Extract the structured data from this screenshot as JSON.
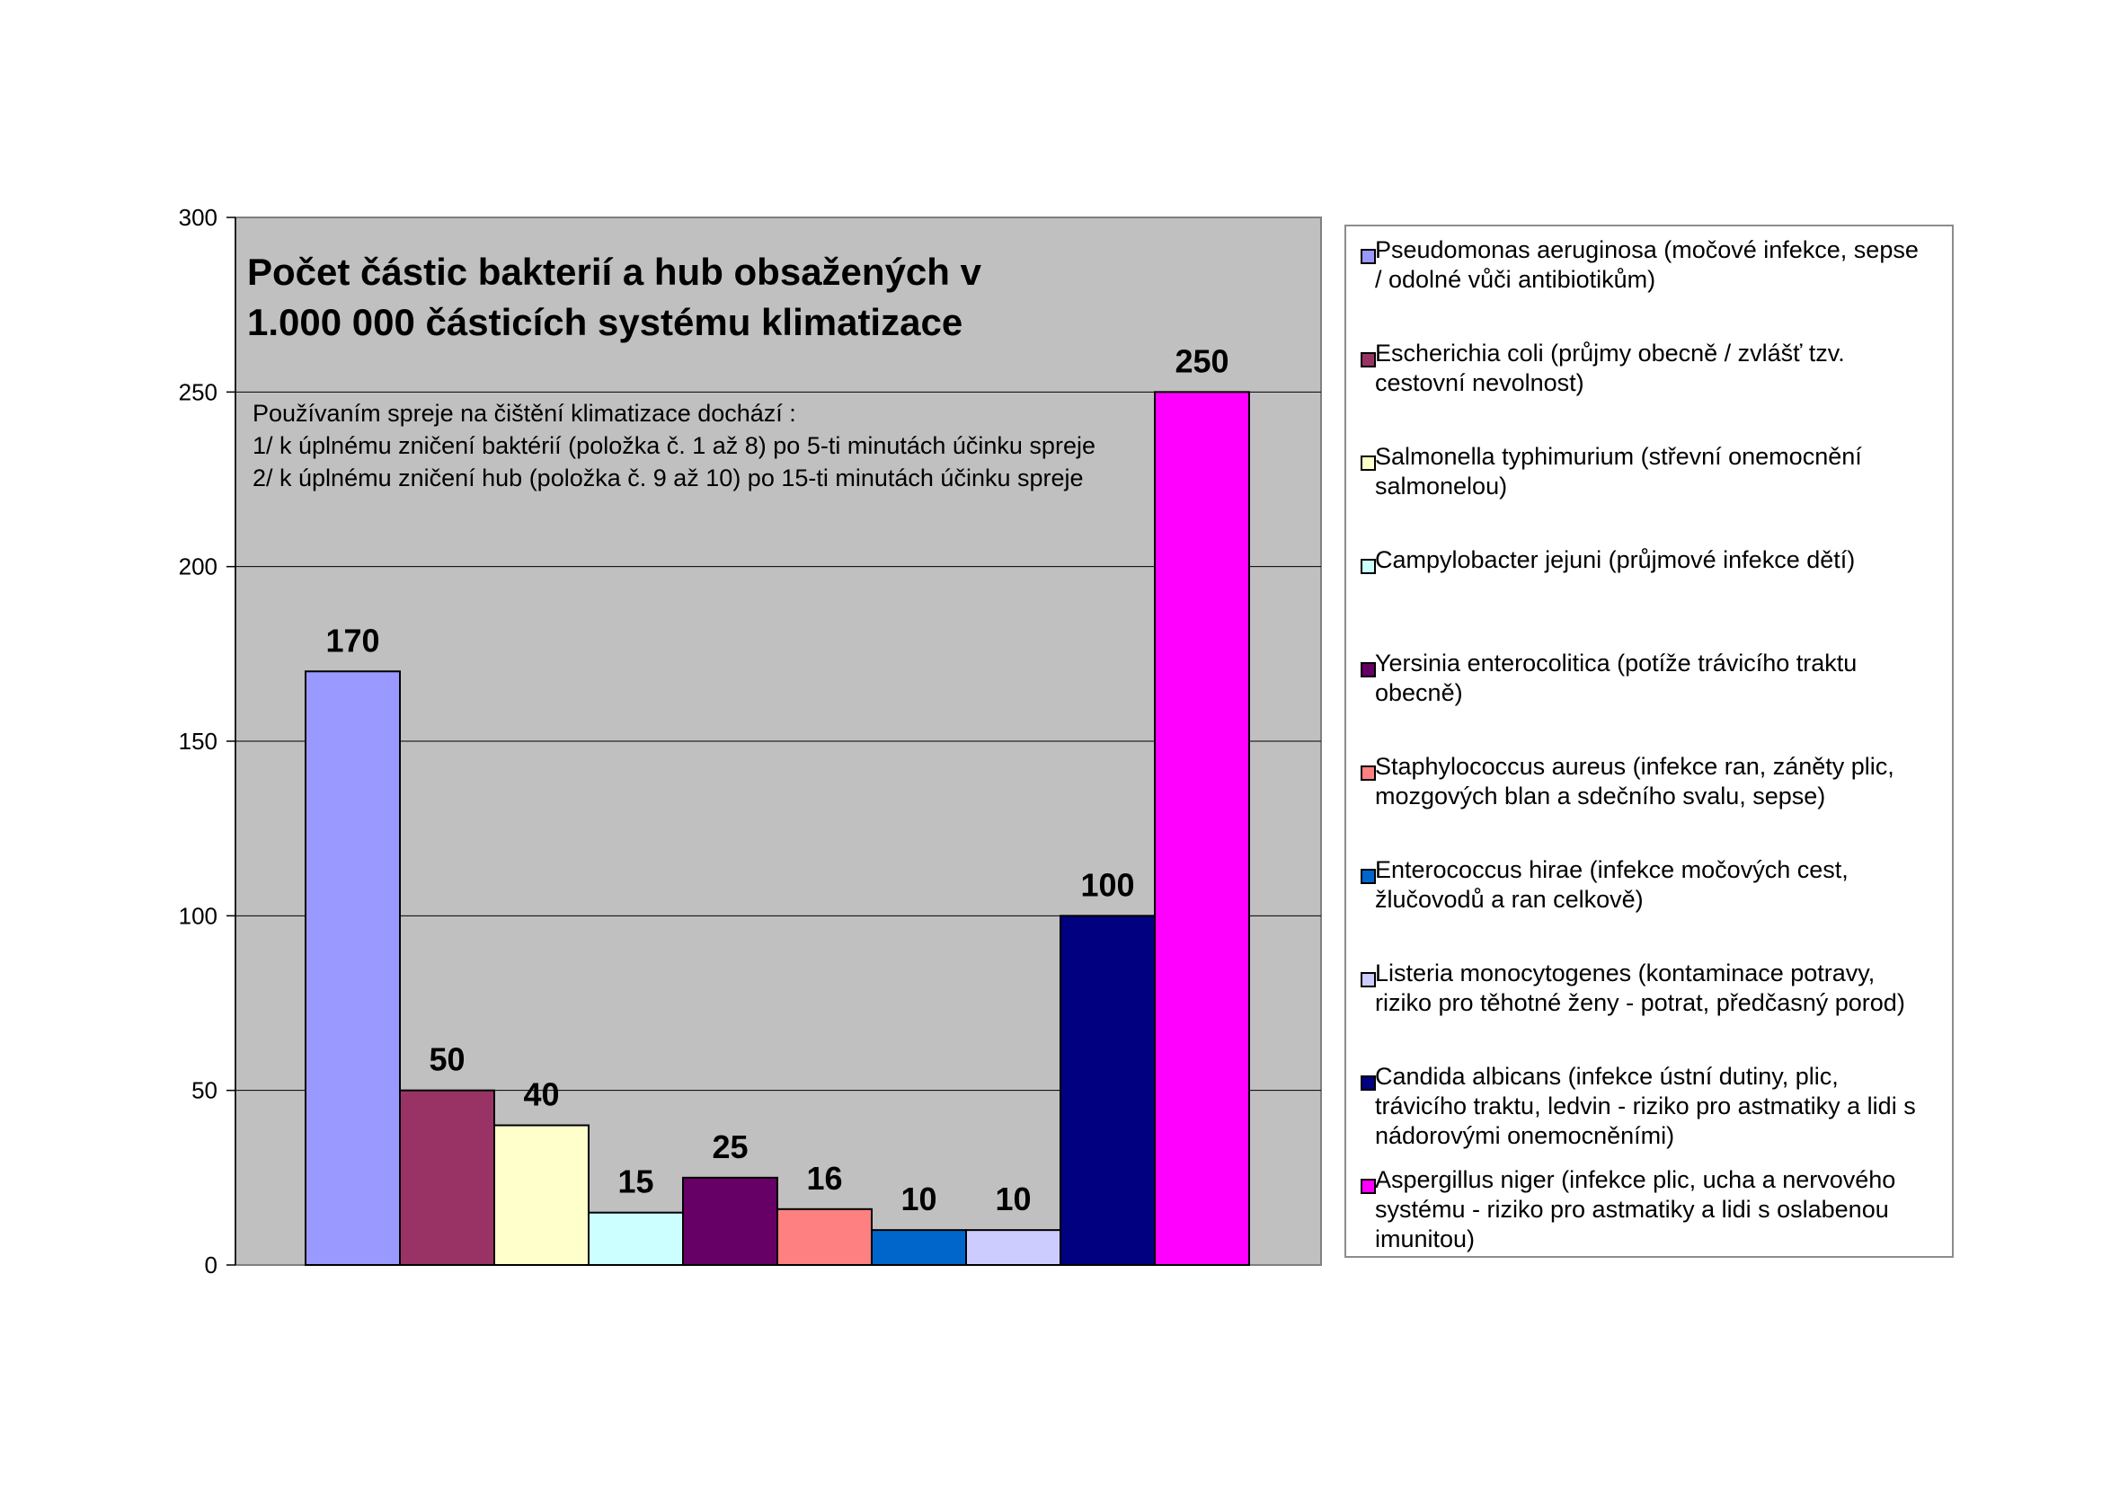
{
  "chart_data": {
    "type": "bar",
    "title": "",
    "xlabel": "",
    "ylabel": "",
    "ylim": [
      0,
      300
    ],
    "yticks": [
      0,
      50,
      100,
      150,
      200,
      250,
      300
    ],
    "grid": true,
    "legend_position": "right",
    "plot_background": "#c0c0c0",
    "categories": [
      "Pseudomonas aeruginosa",
      "Escherichia coli",
      "Salmonella typhimurium",
      "Campylobacter jejuni",
      "Yersinia enterocolitica",
      "Staphylococcus aureus",
      "Enterococcus hirae",
      "Listeria monocytogenes",
      "Candida albicans",
      "Aspergillus niger"
    ],
    "values": [
      170,
      50,
      40,
      15,
      25,
      16,
      10,
      10,
      100,
      250
    ],
    "data_labels": [
      "170",
      "50",
      "40",
      "15",
      "25",
      "16",
      "10",
      "10",
      "100",
      "250"
    ],
    "colors": [
      "#9999ff",
      "#993366",
      "#ffffcc",
      "#ccffff",
      "#660066",
      "#ff8080",
      "#0066cc",
      "#ccccff",
      "#000080",
      "#ff00ff"
    ]
  },
  "overlay": {
    "title_lines": [
      "Počet částic bakterií a hub obsažených v",
      "1.000 000 částicích systému klimatizace"
    ],
    "note_lines": [
      "Používaním spreje na čištění klimatizace dochází :",
      "1/ k úplnému zničení baktérií (položka č. 1 až 8) po 5-ti minutách účinku spreje",
      "2/ k úplnému zničení hub (položka č. 9 až 10) po 15-ti minutách účinku spreje"
    ]
  },
  "legend": [
    {
      "lines": [
        "Pseudomonas aeruginosa (močové infekce, sepse",
        "/ odolné vůči antibiotikům)"
      ],
      "color": "#9999ff"
    },
    {
      "lines": [
        "Escherichia coli (průjmy obecně / zvlášť  tzv.",
        "cestovní nevolnost)"
      ],
      "color": "#993366"
    },
    {
      "lines": [
        "Salmonella typhimurium (střevní onemocnění",
        "salmonelou)"
      ],
      "color": "#ffffcc"
    },
    {
      "lines": [
        "Campylobacter jejuni (průjmové infekce dětí)"
      ],
      "color": "#ccffff"
    },
    {
      "lines": [
        "Yersinia enterocolitica (potíže trávicího traktu",
        "obecně)"
      ],
      "color": "#660066"
    },
    {
      "lines": [
        "Staphylococcus aureus (infekce ran, záněty plic,",
        "mozgových blan a sdečního svalu, sepse)"
      ],
      "color": "#ff8080"
    },
    {
      "lines": [
        "Enterococcus hirae (infekce močových cest,",
        "žlučovodů a ran celkově)"
      ],
      "color": "#0066cc"
    },
    {
      "lines": [
        "Listeria monocytogenes (kontaminace potravy,",
        "riziko pro těhotné ženy - potrat, předčasný porod)"
      ],
      "color": "#ccccff"
    },
    {
      "lines": [
        "Candida albicans (infekce ústní dutiny, plic,",
        "trávicího traktu, ledvin - riziko pro astmatiky a lidi s",
        "nádorovými onemocněními)"
      ],
      "color": "#000080"
    },
    {
      "lines": [
        "Aspergillus niger (infekce plic, ucha a nervového",
        "systému - riziko pro astmatiky a lidi s oslabenou",
        "imunitou)"
      ],
      "color": "#ff00ff"
    }
  ]
}
